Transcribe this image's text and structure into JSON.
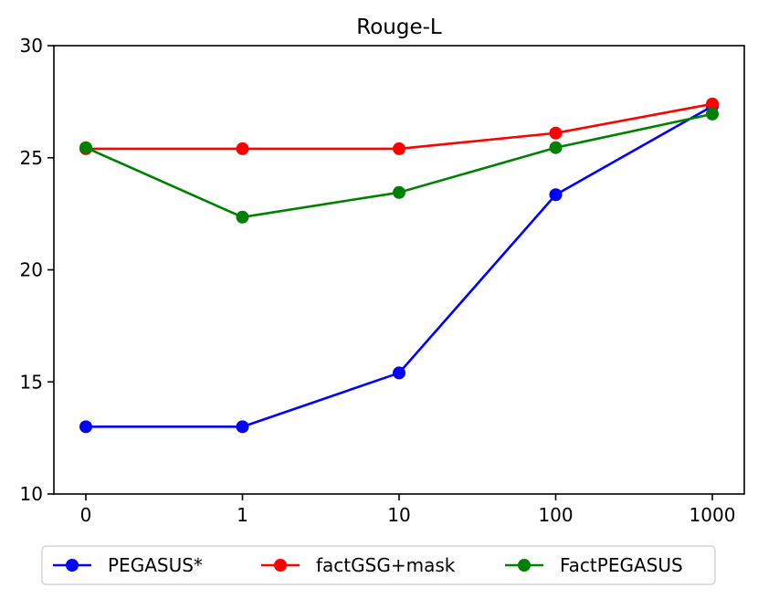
{
  "chart_data": {
    "type": "line",
    "title": "Rouge-L",
    "xlabel": "",
    "ylabel": "",
    "categories": [
      "0",
      "1",
      "10",
      "100",
      "1000"
    ],
    "ylim": [
      10,
      30
    ],
    "yticks": [
      10,
      15,
      20,
      25,
      30
    ],
    "grid": false,
    "legend_position": "bottom",
    "series": [
      {
        "name": "PEGASUS*",
        "color": "#0000ff",
        "values": [
          13.0,
          13.0,
          15.4,
          23.35,
          27.3
        ]
      },
      {
        "name": "factGSG+mask",
        "color": "#ff0000",
        "values": [
          25.4,
          25.4,
          25.4,
          26.1,
          27.4
        ]
      },
      {
        "name": "FactPEGASUS",
        "color": "#008000",
        "values": [
          25.45,
          22.35,
          23.45,
          25.45,
          26.95
        ]
      }
    ]
  }
}
